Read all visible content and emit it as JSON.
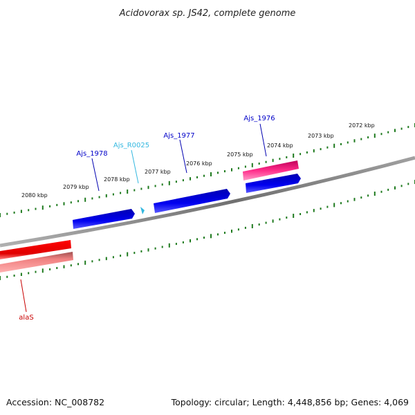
{
  "title": "Acidovorax sp. JS42, complete genome",
  "footer": {
    "accession": "Accession: NC_008782",
    "summary": "Topology: circular; Length: 4,448,856 bp; Genes: 4,069"
  },
  "ticks": [
    "2072 kbp",
    "2073 kbp",
    "2074 kbp",
    "2075 kbp",
    "2076 kbp",
    "2077 kbp",
    "2078 kbp",
    "2079 kbp",
    "2080 kbp"
  ],
  "genes": [
    {
      "name": "Ajs_1976",
      "color": "#0000c8"
    },
    {
      "name": "Ajs_1977",
      "color": "#0000c8"
    },
    {
      "name": "Ajs_R0025",
      "color": "#33b8e0"
    },
    {
      "name": "Ajs_1978",
      "color": "#0000c8"
    },
    {
      "name": "alaS",
      "color": "#c80000"
    }
  ],
  "colors": {
    "backbone": "#808080",
    "tick": "#1e7a1e",
    "forward_feature": "#0000e0",
    "reverse_feature": "#ff0000",
    "reverse_shadow": "#f08080",
    "rna_feature": "#ff2d8a",
    "trna_feature": "#33b8e0"
  }
}
